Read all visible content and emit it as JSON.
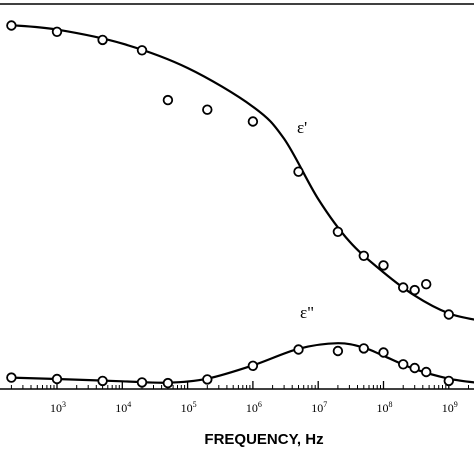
{
  "chart_data": {
    "type": "line",
    "title": "",
    "xlabel": "FREQUENCY, Hz",
    "ylabel": "",
    "x_scale": "log",
    "xlim": [
      100,
      3000000000
    ],
    "ylim": [
      0,
      100
    ],
    "tick_labels": [
      {
        "base": "10",
        "exp": "3",
        "value": 1000
      },
      {
        "base": "10",
        "exp": "4",
        "value": 10000
      },
      {
        "base": "10",
        "exp": "5",
        "value": 100000
      },
      {
        "base": "10",
        "exp": "6",
        "value": 1000000
      },
      {
        "base": "10",
        "exp": "7",
        "value": 10000000
      },
      {
        "base": "10",
        "exp": "8",
        "value": 100000000
      },
      {
        "base": "10",
        "exp": "9",
        "value": 1000000000
      }
    ],
    "series": [
      {
        "name": "ε'",
        "points": [
          [
            200,
            98.5
          ],
          [
            1000,
            96.8
          ],
          [
            5000,
            94.6
          ],
          [
            20000,
            91.8
          ],
          [
            50000,
            78.3
          ],
          [
            200000,
            75.7
          ],
          [
            1000000,
            72.5
          ],
          [
            5000000,
            58.9
          ],
          [
            20000000,
            42.6
          ],
          [
            50000000,
            36.1
          ],
          [
            100000000,
            33.5
          ],
          [
            200000000,
            27.5
          ],
          [
            300000000,
            26.8
          ],
          [
            450000000,
            28.4
          ],
          [
            1000000000,
            20.2
          ],
          [
            3000000000,
            18.9
          ]
        ],
        "curve": [
          [
            200,
            98.6
          ],
          [
            1000,
            97.4
          ],
          [
            10000,
            93.6
          ],
          [
            100000,
            87.0
          ],
          [
            1000000,
            76.5
          ],
          [
            3000000,
            67.8
          ],
          [
            10000000,
            51.5
          ],
          [
            30000000,
            40.0
          ],
          [
            100000000,
            31.6
          ],
          [
            300000000,
            25.3
          ],
          [
            1000000000,
            20.5
          ],
          [
            3000000000,
            18.5
          ]
        ]
      },
      {
        "name": "ε\"",
        "points": [
          [
            200,
            3.1
          ],
          [
            1000,
            2.7
          ],
          [
            5000,
            2.2
          ],
          [
            20000,
            1.8
          ],
          [
            50000,
            1.6
          ],
          [
            200000,
            2.6
          ],
          [
            1000000,
            6.3
          ],
          [
            5000000,
            10.7
          ],
          [
            20000000,
            10.3
          ],
          [
            50000000,
            11.0
          ],
          [
            100000000,
            9.9
          ],
          [
            200000000,
            6.7
          ],
          [
            300000000,
            5.7
          ],
          [
            450000000,
            4.6
          ],
          [
            1000000000,
            2.2
          ],
          [
            3000000000,
            1.8
          ]
        ],
        "curve": [
          [
            200,
            3.1
          ],
          [
            1000,
            2.7
          ],
          [
            10000,
            2.1
          ],
          [
            50000,
            1.7
          ],
          [
            200000,
            2.8
          ],
          [
            1000000,
            6.4
          ],
          [
            5000000,
            10.9
          ],
          [
            20000000,
            12.4
          ],
          [
            50000000,
            11.2
          ],
          [
            100000000,
            9.0
          ],
          [
            300000000,
            5.4
          ],
          [
            1000000000,
            2.8
          ],
          [
            3000000000,
            1.6
          ]
        ]
      }
    ],
    "grid": false,
    "legend": "inline labels near curves"
  }
}
